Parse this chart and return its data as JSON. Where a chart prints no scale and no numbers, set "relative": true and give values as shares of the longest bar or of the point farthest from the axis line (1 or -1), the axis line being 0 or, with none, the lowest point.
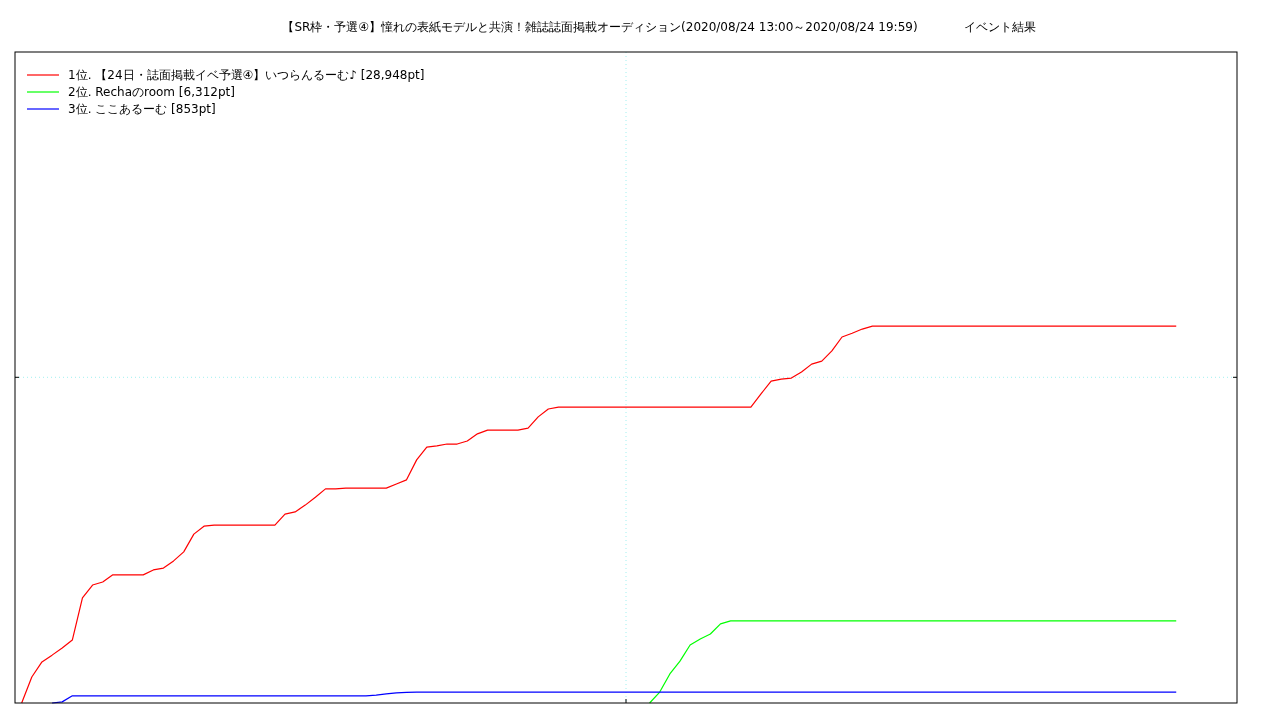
{
  "chart_data": {
    "type": "line",
    "title": "【SR枠・予選④】憧れの表紙モデルと共演！雑誌誌面掲載オーディション(2020/08/24 13:00～2020/08/24 19:59)",
    "subtitle": "イベント結果",
    "relative": true,
    "legend": "top left",
    "ref_lines": [
      {
        "axis": "y",
        "value": 0.864,
        "color": "#a0f0f0",
        "line_style": "dotted"
      }
    ],
    "categories": [
      null,
      null,
      null,
      null,
      null,
      null,
      null,
      null,
      null,
      null,
      null,
      null,
      null,
      null,
      null,
      null,
      null,
      null,
      null,
      null,
      null,
      null,
      null,
      null,
      null,
      null,
      null,
      null,
      null,
      null,
      null,
      null,
      null,
      null,
      null,
      null,
      null,
      null,
      null,
      null,
      null,
      null,
      null,
      null,
      null,
      null,
      null,
      null,
      null,
      null,
      null,
      null,
      null,
      null,
      null,
      null,
      null,
      null,
      null,
      null,
      null,
      null,
      null,
      null,
      null,
      null,
      null,
      null,
      null,
      null,
      null,
      null,
      null,
      null,
      null,
      null,
      null,
      null,
      null,
      null,
      null,
      null,
      null,
      null,
      null,
      null,
      null,
      null,
      null,
      null,
      null,
      null,
      null,
      null,
      null,
      null,
      null,
      null,
      null,
      null,
      null,
      null,
      null,
      null,
      null,
      null,
      null,
      null,
      null,
      null,
      null,
      null,
      null,
      null,
      null
    ],
    "series": [
      {
        "name": "1位. 【24日・誌面掲載イベ予選④】いつらんるーむ♪ [28,948pt]",
        "color": "#ff0000",
        "values": [
          0,
          0.069,
          0.109,
          0.127,
          0.146,
          0.167,
          0.279,
          0.313,
          0.321,
          0.34,
          0.34,
          0.34,
          0.34,
          0.353,
          0.358,
          0.377,
          0.401,
          0.448,
          0.469,
          0.472,
          0.472,
          0.472,
          0.472,
          0.472,
          0.472,
          0.472,
          0.501,
          0.507,
          0.525,
          0.546,
          0.568,
          0.568,
          0.57,
          0.57,
          0.57,
          0.57,
          0.57,
          0.581,
          0.592,
          0.645,
          0.679,
          0.682,
          0.687,
          0.687,
          0.695,
          0.714,
          0.724,
          0.724,
          0.724,
          0.724,
          0.729,
          0.759,
          0.78,
          0.785,
          0.785,
          0.785,
          0.785,
          0.785,
          0.785,
          0.785,
          0.785,
          0.785,
          0.785,
          0.785,
          0.785,
          0.785,
          0.785,
          0.785,
          0.785,
          0.785,
          0.785,
          0.785,
          0.785,
          0.82,
          0.854,
          0.859,
          0.862,
          0.878,
          0.899,
          0.907,
          0.934,
          0.971,
          0.981,
          0.992,
          1,
          1,
          1,
          1,
          1,
          1,
          1,
          1,
          1,
          1,
          1,
          1,
          1,
          1,
          1,
          1,
          1,
          1,
          1,
          1,
          1,
          1,
          1,
          1,
          1,
          1,
          1,
          1,
          1,
          1,
          1
        ]
      },
      {
        "name": "2位. Rechaのroom [6,312pt]",
        "color": "#00ff00",
        "values": [
          null,
          null,
          null,
          null,
          null,
          null,
          null,
          null,
          null,
          null,
          null,
          null,
          null,
          null,
          null,
          null,
          null,
          null,
          null,
          null,
          null,
          null,
          null,
          null,
          null,
          null,
          null,
          null,
          null,
          null,
          null,
          null,
          null,
          null,
          null,
          null,
          null,
          null,
          null,
          null,
          null,
          null,
          null,
          null,
          null,
          null,
          null,
          null,
          null,
          null,
          null,
          null,
          null,
          null,
          null,
          null,
          null,
          null,
          null,
          null,
          null,
          null,
          0,
          0.029,
          0.077,
          0.111,
          0.154,
          0.17,
          0.183,
          0.21,
          0.218,
          0.218,
          0.218,
          0.218,
          0.218,
          0.218,
          0.218,
          0.218,
          0.218,
          0.218,
          0.218,
          0.218,
          0.218,
          0.218,
          0.218,
          0.218,
          0.218,
          0.218,
          0.218,
          0.218,
          0.218,
          0.218,
          0.218,
          0.218,
          0.218,
          0.218,
          0.218,
          0.218,
          0.218,
          0.218,
          0.218,
          0.218,
          0.218,
          0.218,
          0.218,
          0.218,
          0.218,
          0.218,
          0.218,
          0.218,
          0.218,
          0.218,
          0.218,
          0.218,
          0.218
        ]
      },
      {
        "name": "3位. ここあるーむ [853pt]",
        "color": "#0000ff",
        "values": [
          null,
          null,
          null,
          0,
          0.003,
          0.019,
          0.019,
          0.019,
          0.019,
          0.019,
          0.019,
          0.019,
          0.019,
          0.019,
          0.019,
          0.019,
          0.019,
          0.019,
          0.019,
          0.019,
          0.019,
          0.019,
          0.019,
          0.019,
          0.019,
          0.019,
          0.019,
          0.019,
          0.019,
          0.019,
          0.019,
          0.019,
          0.019,
          0.019,
          0.019,
          0.021,
          0.024,
          0.027,
          0.028,
          0.029,
          0.029,
          0.029,
          0.029,
          0.029,
          0.029,
          0.029,
          0.029,
          0.029,
          0.029,
          0.029,
          0.029,
          0.029,
          0.029,
          0.029,
          0.029,
          0.029,
          0.029,
          0.029,
          0.029,
          0.029,
          0.029,
          0.029,
          0.029,
          0.029,
          0.029,
          0.029,
          0.029,
          0.029,
          0.029,
          0.029,
          0.029,
          0.029,
          0.029,
          0.029,
          0.029,
          0.029,
          0.029,
          0.029,
          0.029,
          0.029,
          0.029,
          0.029,
          0.029,
          0.029,
          0.029,
          0.029,
          0.029,
          0.029,
          0.029,
          0.029,
          0.029,
          0.029,
          0.029,
          0.029,
          0.029,
          0.029,
          0.029,
          0.029,
          0.029,
          0.029,
          0.029,
          0.029,
          0.029,
          0.029,
          0.029,
          0.029,
          0.029,
          0.029,
          0.029,
          0.029,
          0.029,
          0.029,
          0.029,
          0.029,
          0.029
        ]
      }
    ]
  }
}
